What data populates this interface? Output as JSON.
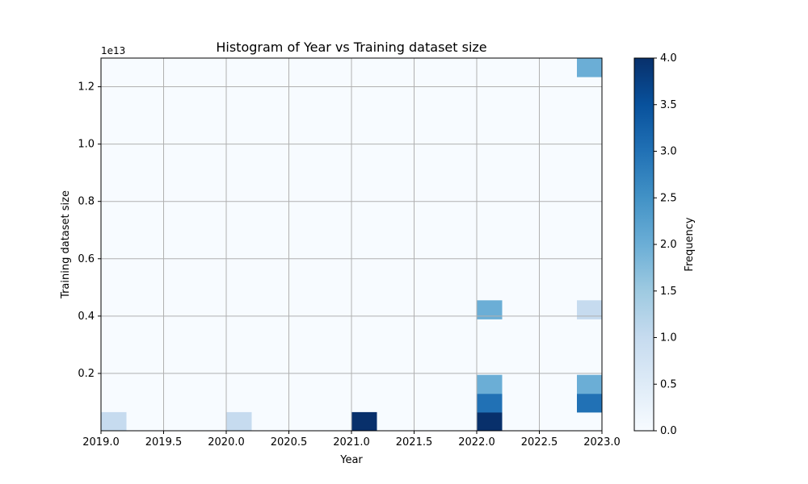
{
  "chart_data": {
    "type": "heatmap",
    "title": "Histogram of Year vs Training dataset size",
    "xlabel": "Year",
    "ylabel": "Training dataset size",
    "xlim": [
      2019.0,
      2023.0
    ],
    "ylim": [
      0,
      13000000000000.0
    ],
    "y_offset_label": "1e13",
    "x_ticks": [
      2019.0,
      2019.5,
      2020.0,
      2020.5,
      2021.0,
      2021.5,
      2022.0,
      2022.5,
      2023.0
    ],
    "x_tick_labels": [
      "2019.0",
      "2019.5",
      "2020.0",
      "2020.5",
      "2021.0",
      "2021.5",
      "2022.0",
      "2022.5",
      "2023.0"
    ],
    "y_ticks": [
      2000000000000.0,
      4000000000000.0,
      6000000000000.0,
      8000000000000.0,
      10000000000000.0,
      12000000000000.0
    ],
    "y_tick_labels": [
      "0.2",
      "0.4",
      "0.6",
      "0.8",
      "1.0",
      "1.2"
    ],
    "grid": true,
    "colormap": "Blues",
    "bins": {
      "x_bins": 20,
      "y_bins": 20,
      "x_edges_range": [
        2019.0,
        2023.0
      ],
      "y_edges_range": [
        0,
        13000000000000.0
      ]
    },
    "cells": [
      {
        "x_bin": 0,
        "y_bin": 0,
        "count": 1
      },
      {
        "x_bin": 5,
        "y_bin": 0,
        "count": 1
      },
      {
        "x_bin": 10,
        "y_bin": 0,
        "count": 4
      },
      {
        "x_bin": 15,
        "y_bin": 0,
        "count": 4
      },
      {
        "x_bin": 15,
        "y_bin": 1,
        "count": 3
      },
      {
        "x_bin": 15,
        "y_bin": 2,
        "count": 2
      },
      {
        "x_bin": 15,
        "y_bin": 6,
        "count": 2
      },
      {
        "x_bin": 19,
        "y_bin": 1,
        "count": 3
      },
      {
        "x_bin": 19,
        "y_bin": 2,
        "count": 2
      },
      {
        "x_bin": 19,
        "y_bin": 6,
        "count": 1
      },
      {
        "x_bin": 19,
        "y_bin": 19,
        "count": 2
      }
    ],
    "colorbar": {
      "label": "Frequency",
      "range": [
        0.0,
        4.0
      ],
      "ticks": [
        0.0,
        0.5,
        1.0,
        1.5,
        2.0,
        2.5,
        3.0,
        3.5,
        4.0
      ],
      "tick_labels": [
        "0.0",
        "0.5",
        "1.0",
        "1.5",
        "2.0",
        "2.5",
        "3.0",
        "3.5",
        "4.0"
      ]
    }
  }
}
